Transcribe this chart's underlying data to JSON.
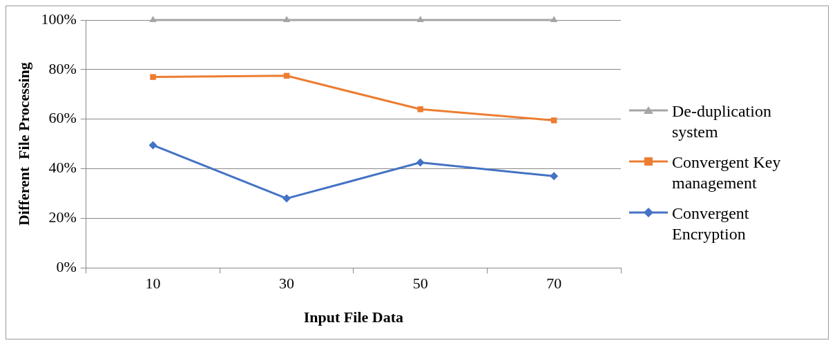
{
  "chart_data": {
    "type": "line",
    "xlabel": "Input File Data",
    "ylabel": "Different  File Processing",
    "categories": [
      "10",
      "30",
      "50",
      "70"
    ],
    "series": [
      {
        "name": "De-duplication system",
        "color": "#a5a5a5",
        "marker": "triangle",
        "values": [
          100,
          100,
          100,
          100
        ]
      },
      {
        "name": "Convergent Key management",
        "color": "#ed7d31",
        "marker": "square",
        "values": [
          77,
          77.5,
          64,
          59.5
        ]
      },
      {
        "name": "Convergent Encryption",
        "color": "#4472c4",
        "marker": "diamond",
        "values": [
          49.5,
          28,
          42.5,
          37
        ]
      }
    ],
    "ylim": [
      0,
      100
    ],
    "yticks": [
      {
        "value": 0,
        "label": "0%"
      },
      {
        "value": 20,
        "label": "20%"
      },
      {
        "value": 40,
        "label": "40%"
      },
      {
        "value": 60,
        "label": "60%"
      },
      {
        "value": 80,
        "label": "80%"
      },
      {
        "value": 100,
        "label": "100%"
      }
    ],
    "grid": "y",
    "legend": "right",
    "line_style": "solid"
  }
}
